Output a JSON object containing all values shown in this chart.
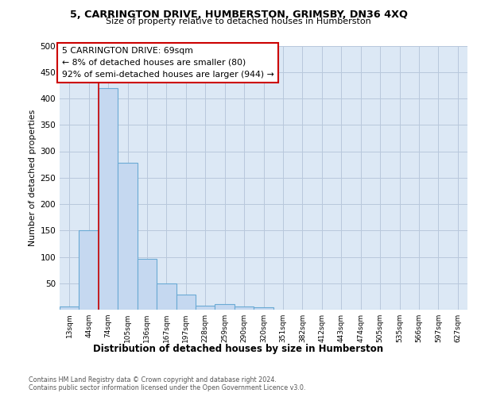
{
  "title_line1": "5, CARRINGTON DRIVE, HUMBERSTON, GRIMSBY, DN36 4XQ",
  "title_line2": "Size of property relative to detached houses in Humberston",
  "xlabel": "Distribution of detached houses by size in Humberston",
  "ylabel": "Number of detached properties",
  "bin_labels": [
    "13sqm",
    "44sqm",
    "74sqm",
    "105sqm",
    "136sqm",
    "167sqm",
    "197sqm",
    "228sqm",
    "259sqm",
    "290sqm",
    "320sqm",
    "351sqm",
    "382sqm",
    "412sqm",
    "443sqm",
    "474sqm",
    "505sqm",
    "535sqm",
    "566sqm",
    "597sqm",
    "627sqm"
  ],
  "bar_heights": [
    6,
    150,
    420,
    278,
    96,
    50,
    28,
    8,
    10,
    6,
    5,
    0,
    0,
    0,
    0,
    0,
    0,
    0,
    0,
    0,
    0
  ],
  "bar_color": "#c5d8f0",
  "bar_edgecolor": "#6aaad4",
  "bar_linewidth": 0.8,
  "grid_color": "#b8c8dc",
  "background_color": "#dce8f5",
  "red_line_bin": 2,
  "annotation_title": "5 CARRINGTON DRIVE: 69sqm",
  "annotation_line1": "← 8% of detached houses are smaller (80)",
  "annotation_line2": "92% of semi-detached houses are larger (944) →",
  "annotation_box_facecolor": "#ffffff",
  "annotation_box_edgecolor": "#cc0000",
  "red_line_color": "#cc0000",
  "ylim": [
    0,
    500
  ],
  "yticks": [
    0,
    50,
    100,
    150,
    200,
    250,
    300,
    350,
    400,
    450,
    500
  ],
  "footer_line1": "Contains HM Land Registry data © Crown copyright and database right 2024.",
  "footer_line2": "Contains public sector information licensed under the Open Government Licence v3.0."
}
